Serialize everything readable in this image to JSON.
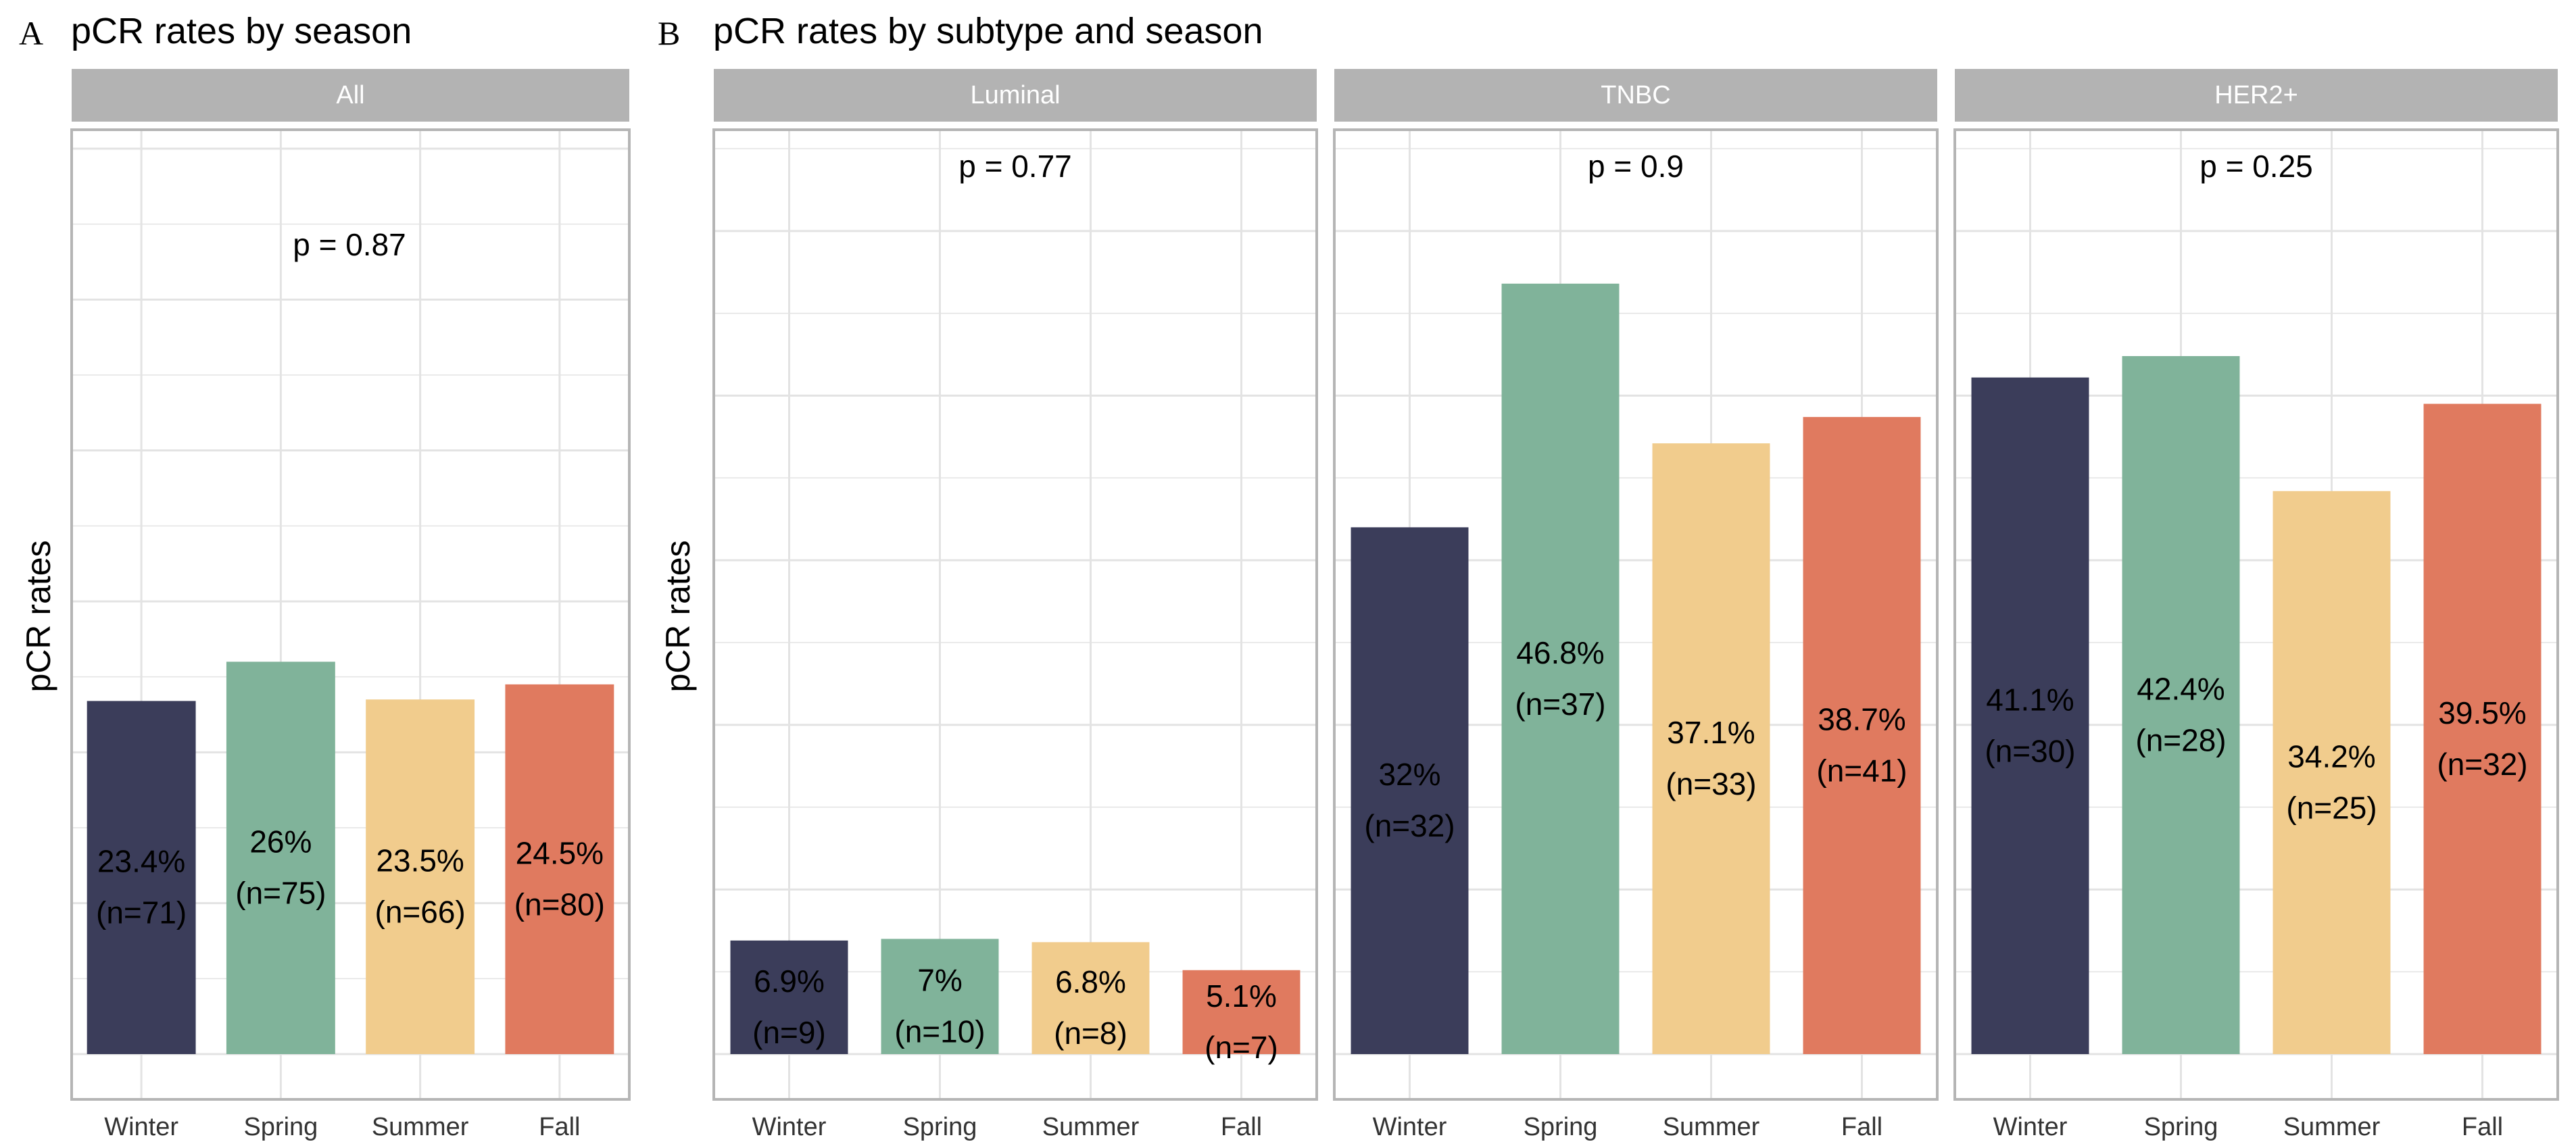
{
  "figure": {
    "panel_a_letter": "A",
    "panel_a_title": "pCR rates by season",
    "panel_b_letter": "B",
    "panel_b_title": "pCR rates by subtype and season"
  },
  "colors": {
    "winter": "#3b3d5a",
    "spring": "#80b39a",
    "summer": "#f1cc8d",
    "fall": "#e07a5f",
    "strip": "#b3b3b3",
    "grid": "#e3e3e3",
    "border": "#b5b5b5"
  },
  "chart_data": [
    {
      "type": "bar",
      "panel": "A",
      "title": "pCR rates by season",
      "facet": "All",
      "ylabel": "pCR rates",
      "xlabel": "",
      "ylim": [
        0,
        0.6
      ],
      "p_value": "p = 0.87",
      "categories": [
        "Winter",
        "Spring",
        "Summer",
        "Fall"
      ],
      "values": [
        0.234,
        0.26,
        0.235,
        0.245
      ],
      "labels": [
        "23.4%",
        "26%",
        "23.5%",
        "24.5%"
      ],
      "n_labels": [
        "(n=71)",
        "(n=75)",
        "(n=66)",
        "(n=80)"
      ]
    },
    {
      "type": "bar",
      "panel": "B",
      "title": "pCR rates by subtype and season",
      "facet": "Luminal",
      "ylabel": "pCR rates",
      "xlabel": "",
      "ylim": [
        0,
        0.55
      ],
      "p_value": "p = 0.77",
      "categories": [
        "Winter",
        "Spring",
        "Summer",
        "Fall"
      ],
      "values": [
        0.069,
        0.07,
        0.068,
        0.051
      ],
      "labels": [
        "6.9%",
        "7%",
        "6.8%",
        "5.1%"
      ],
      "n_labels": [
        "(n=9)",
        "(n=10)",
        "(n=8)",
        "(n=7)"
      ]
    },
    {
      "type": "bar",
      "panel": "B",
      "title": "pCR rates by subtype and season",
      "facet": "TNBC",
      "ylabel": "pCR rates",
      "xlabel": "",
      "ylim": [
        0,
        0.55
      ],
      "p_value": "p = 0.9",
      "categories": [
        "Winter",
        "Spring",
        "Summer",
        "Fall"
      ],
      "values": [
        0.32,
        0.468,
        0.371,
        0.387
      ],
      "labels": [
        "32%",
        "46.8%",
        "37.1%",
        "38.7%"
      ],
      "n_labels": [
        "(n=32)",
        "(n=37)",
        "(n=33)",
        "(n=41)"
      ]
    },
    {
      "type": "bar",
      "panel": "B",
      "title": "pCR rates by subtype and season",
      "facet": "HER2+",
      "ylabel": "",
      "xlabel": "",
      "ylim": [
        0,
        0.55
      ],
      "p_value": "p = 0.25",
      "categories": [
        "Winter",
        "Spring",
        "Summer",
        "Fall"
      ],
      "values": [
        0.411,
        0.424,
        0.342,
        0.395
      ],
      "labels": [
        "41.1%",
        "42.4%",
        "34.2%",
        "39.5%"
      ],
      "n_labels": [
        "(n=30)",
        "(n=28)",
        "(n=25)",
        "(n=32)"
      ]
    }
  ]
}
